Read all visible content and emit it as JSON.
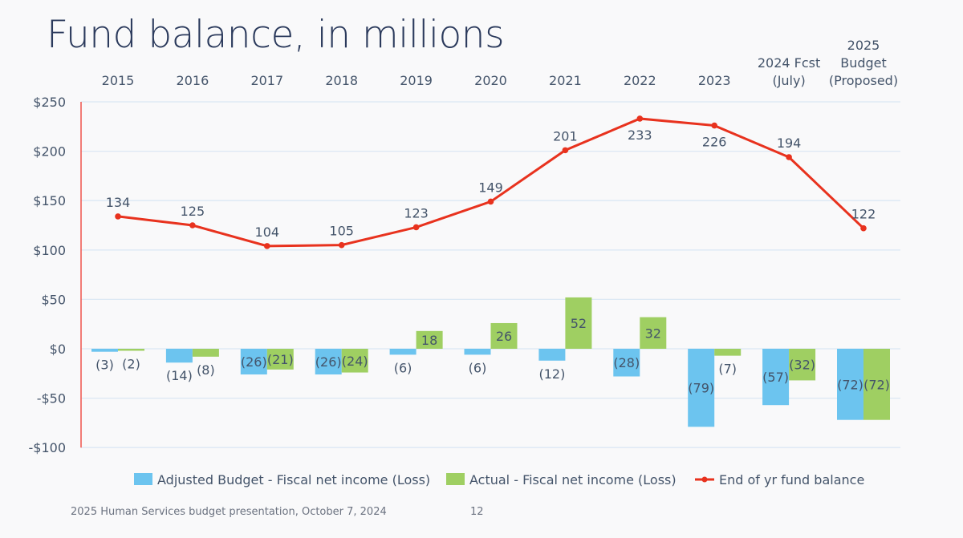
{
  "chart_data": {
    "type": "bar",
    "title": "Fund balance, in millions",
    "categories": [
      [
        "2015"
      ],
      [
        "2016"
      ],
      [
        "2017"
      ],
      [
        "2018"
      ],
      [
        "2019"
      ],
      [
        "2020"
      ],
      [
        "2021"
      ],
      [
        "2022"
      ],
      [
        "2023"
      ],
      [
        "2024 Fcst",
        "(July)"
      ],
      [
        "2025",
        "Budget",
        "(Proposed)"
      ]
    ],
    "ylim": [
      -100,
      250
    ],
    "yticks": [
      250,
      200,
      150,
      100,
      50,
      0,
      -50,
      -100
    ],
    "ytick_labels": [
      "$250",
      "$200",
      "$150",
      "$100",
      "$50",
      "$0",
      "-$50",
      "-$100"
    ],
    "grid": true,
    "legend_position": "bottom",
    "series": [
      {
        "name": "Adjusted Budget - Fiscal net income (Loss)",
        "type": "bar",
        "color": "#6cc4ef",
        "values": [
          -3,
          -14,
          -26,
          -26,
          -6,
          -6,
          -12,
          -28,
          -79,
          -57,
          -72
        ],
        "labels": [
          "(3)",
          "(14)",
          "(26)",
          "(26)",
          "(6)",
          "(6)",
          "(12)",
          "(28)",
          "(79)",
          "(57)",
          "(72)"
        ]
      },
      {
        "name": "Actual - Fiscal net income (Loss)",
        "type": "bar",
        "color": "#9fcf62",
        "values": [
          -2,
          -8,
          -21,
          -24,
          18,
          26,
          52,
          32,
          -7,
          -32,
          -72
        ],
        "labels": [
          "(2)",
          "(8)",
          "(21)",
          "(24)",
          "18",
          "26",
          "52",
          "32",
          "(7)",
          "(32)",
          "(72)"
        ]
      },
      {
        "name": "End of yr fund balance",
        "type": "line",
        "color": "#e8321e",
        "values": [
          134,
          125,
          104,
          105,
          123,
          149,
          201,
          233,
          226,
          194,
          122
        ],
        "labels": [
          "134",
          "125",
          "104",
          "105",
          "123",
          "149",
          "201",
          "233",
          "226",
          "194",
          "122"
        ]
      }
    ]
  },
  "footer": {
    "text": "2025 Human Services budget presentation, October 7, 2024",
    "page_number": "12"
  }
}
